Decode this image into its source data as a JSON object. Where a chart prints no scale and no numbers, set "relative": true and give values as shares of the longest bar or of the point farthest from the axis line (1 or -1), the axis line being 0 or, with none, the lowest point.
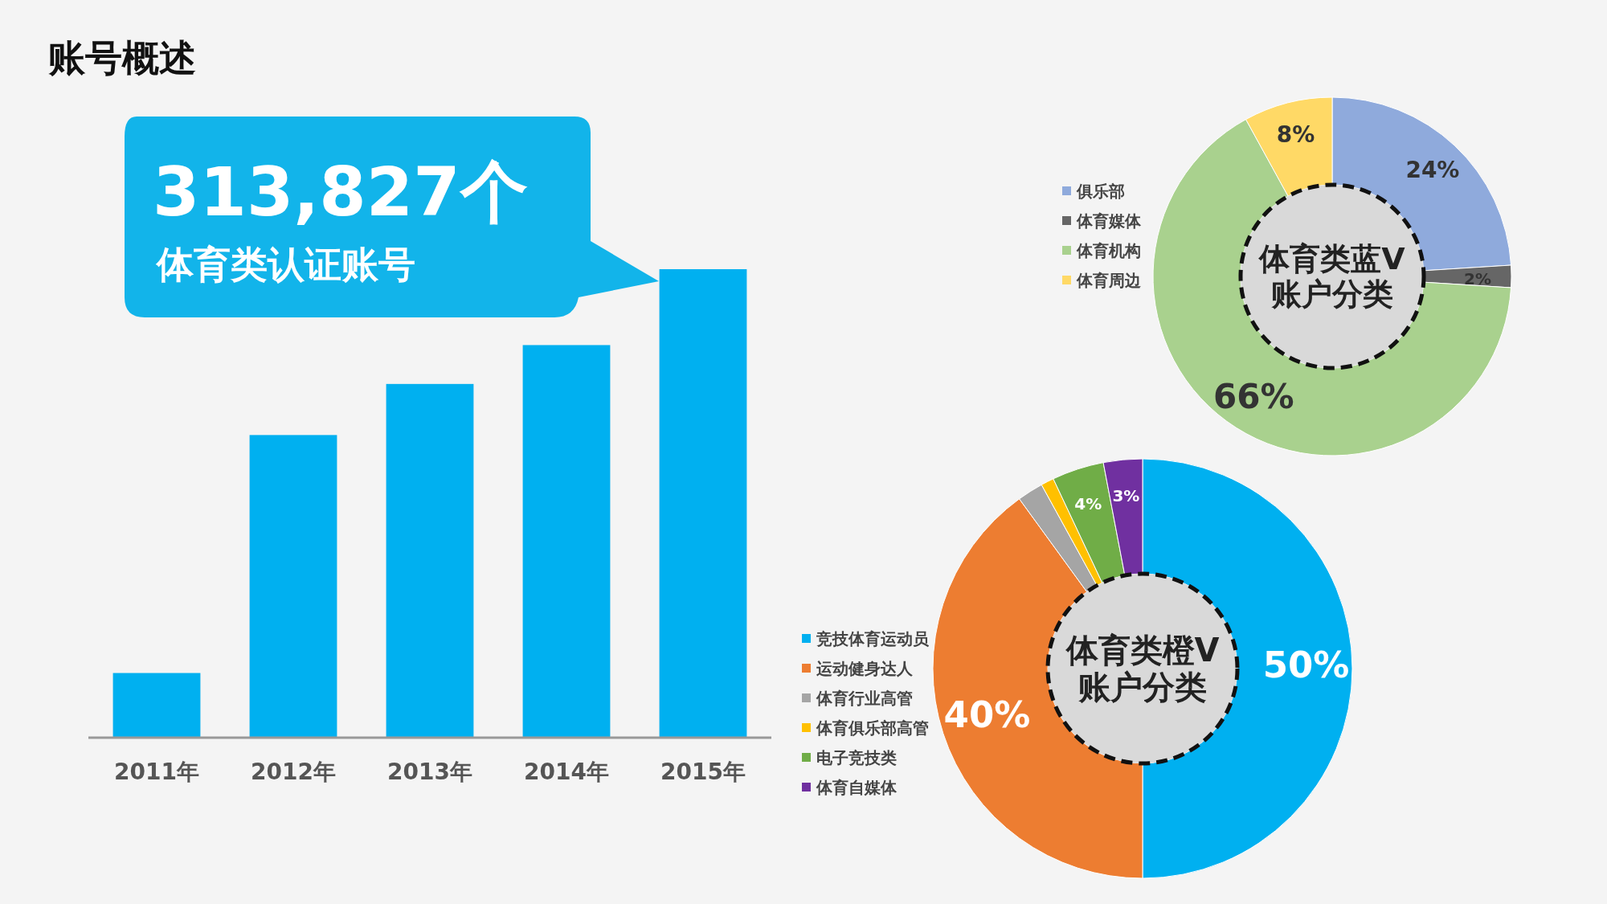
{
  "chart_data": [
    {
      "type": "bar",
      "title": "账号概述",
      "categories": [
        "2011年",
        "2012年",
        "2013年",
        "2014年",
        "2015年"
      ],
      "values": [
        0.138,
        0.646,
        0.755,
        0.838,
        1
      ],
      "relative": true,
      "color": "#00b0f0",
      "annotations": [
        "313,827个",
        "体育类认证账号"
      ]
    },
    {
      "type": "donut",
      "title": "体育类蓝V\n账户分类",
      "categories": [
        "俱乐部",
        "体育媒体",
        "体育机构",
        "体育周边"
      ],
      "values": [
        24,
        2,
        66,
        8
      ],
      "colors": [
        "#8faadc",
        "#666666",
        "#a9d18e",
        "#ffd966"
      ],
      "value_labels": [
        "24%",
        "2%",
        "66%",
        "8%"
      ],
      "legend": "left"
    },
    {
      "type": "donut",
      "title": "体育类橙V\n账户分类",
      "categories": [
        "竞技体育运动员",
        "运动健身达人",
        "体育行业高管",
        "体育俱乐部高管",
        "电子竞技类",
        "体育自媒体"
      ],
      "values": [
        50,
        40,
        2,
        1,
        4,
        3
      ],
      "colors": [
        "#00b0f0",
        "#ed7d31",
        "#a5a5a5",
        "#ffc000",
        "#70ad47",
        "#7030a0"
      ],
      "value_labels": [
        "50%",
        "40%",
        null,
        null,
        "4%",
        "3%"
      ],
      "legend": "left"
    }
  ]
}
